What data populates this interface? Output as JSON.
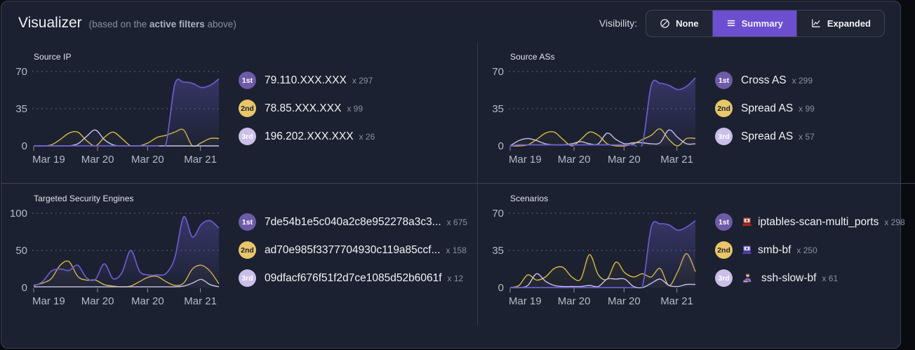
{
  "header": {
    "title": "Visualizer",
    "subtitle_prefix": "(based on the ",
    "subtitle_bold": "active filters",
    "subtitle_suffix": " above)",
    "visibility": {
      "label": "Visibility:",
      "options": [
        {
          "label": "None",
          "icon": "none-icon",
          "active": false
        },
        {
          "label": "Summary",
          "icon": "summary-icon",
          "active": true
        },
        {
          "label": "Expanded",
          "icon": "expanded-icon",
          "active": false
        }
      ]
    }
  },
  "colors": {
    "accent": "#6c4ed0",
    "series_purple": "#6a5ccf",
    "series_yellow": "#d9b845",
    "series_lavender": "#c9c2ec",
    "badge1": "#6d5ba8",
    "badge2": "#e8c669",
    "badge3": "#c9bfe8",
    "axis_text": "#b6bac6",
    "grid_dots": "#565b6b"
  },
  "panels": [
    {
      "title": "Source IP",
      "chart_data": {
        "type": "area",
        "x_labels": [
          "Mar 19",
          "Mar 20",
          "Mar 20",
          "Mar 21"
        ],
        "y_ticks": [
          0,
          35,
          70
        ],
        "ylim": [
          0,
          70
        ],
        "grid": "dotted",
        "legend": "none",
        "series": [
          {
            "name": "2nd",
            "color": "#d9b845",
            "values": [
              0,
              0,
              1,
              6,
              12,
              13,
              5,
              0,
              8,
              13,
              7,
              0,
              0,
              3,
              8,
              10,
              13,
              15,
              0,
              3,
              7,
              7
            ]
          },
          {
            "name": "3rd",
            "color": "#c9c2ec",
            "values": [
              0,
              0,
              0,
              0,
              0,
              2,
              9,
              15,
              6,
              1,
              0,
              0,
              0,
              0,
              0,
              0,
              0,
              0,
              0,
              0,
              0,
              0
            ]
          },
          {
            "name": "1st",
            "color": "#6a5ccf",
            "values": [
              0,
              0,
              0,
              0,
              0,
              0,
              0,
              0,
              0,
              0,
              0,
              0,
              0,
              0,
              0,
              2,
              58,
              60,
              59,
              55,
              57,
              63
            ]
          }
        ]
      },
      "ranking": [
        {
          "rank": "1st",
          "name": "79.110.XXX.XXX",
          "count": "x 297"
        },
        {
          "rank": "2nd",
          "name": "78.85.XXX.XXX",
          "count": "x 99"
        },
        {
          "rank": "3rd",
          "name": "196.202.XXX.XXX",
          "count": "x 26"
        }
      ]
    },
    {
      "title": "Source ASs",
      "chart_data": {
        "type": "area",
        "x_labels": [
          "Mar 19",
          "Mar 20",
          "Mar 20",
          "Mar 21"
        ],
        "y_ticks": [
          0,
          35,
          70
        ],
        "ylim": [
          0,
          70
        ],
        "grid": "dotted",
        "legend": "none",
        "series": [
          {
            "name": "2nd",
            "color": "#d9b845",
            "values": [
              0,
              0,
              1,
              6,
              12,
              13,
              6,
              0,
              6,
              13,
              10,
              2,
              0,
              0,
              2,
              6,
              10,
              16,
              6,
              0,
              7,
              7
            ]
          },
          {
            "name": "3rd",
            "color": "#c9c2ec",
            "values": [
              0,
              5,
              7,
              5,
              2,
              1,
              1,
              2,
              4,
              2,
              2,
              12,
              6,
              2,
              3,
              3,
              2,
              3,
              15,
              8,
              2,
              2
            ]
          },
          {
            "name": "1st",
            "color": "#6a5ccf",
            "values": [
              0,
              1,
              1,
              1,
              1,
              1,
              1,
              1,
              1,
              1,
              1,
              1,
              1,
              1,
              1,
              2,
              57,
              59,
              57,
              53,
              56,
              64
            ]
          }
        ]
      },
      "ranking": [
        {
          "rank": "1st",
          "name": "Cross AS",
          "count": "x 299"
        },
        {
          "rank": "2nd",
          "name": "Spread AS",
          "count": "x 99"
        },
        {
          "rank": "3rd",
          "name": "Spread AS",
          "count": "x 57"
        }
      ]
    },
    {
      "title": "Targeted Security Engines",
      "chart_data": {
        "type": "area",
        "x_labels": [
          "Mar 19",
          "Mar 20",
          "Mar 20",
          "Mar 21"
        ],
        "y_ticks": [
          0,
          50,
          100
        ],
        "ylim": [
          0,
          100
        ],
        "grid": "dotted",
        "legend": "none",
        "series": [
          {
            "name": "2nd",
            "color": "#d9b845",
            "values": [
              3,
              6,
              12,
              30,
              35,
              15,
              10,
              10,
              4,
              2,
              1,
              2,
              8,
              14,
              15,
              8,
              3,
              6,
              25,
              30,
              22,
              5
            ]
          },
          {
            "name": "3rd",
            "color": "#c9c2ec",
            "values": [
              1,
              1,
              1,
              1,
              1,
              1,
              1,
              1,
              1,
              1,
              1,
              1,
              1,
              1,
              1,
              1,
              1,
              2,
              6,
              11,
              4,
              1
            ]
          },
          {
            "name": "1st",
            "color": "#6a5ccf",
            "values": [
              2,
              8,
              22,
              25,
              23,
              30,
              13,
              11,
              32,
              12,
              20,
              50,
              22,
              17,
              17,
              19,
              40,
              95,
              68,
              85,
              90,
              80
            ]
          }
        ]
      },
      "ranking": [
        {
          "rank": "1st",
          "name": "7de54b1e5c040a2c8e952278a3c3...",
          "count": "x 675"
        },
        {
          "rank": "2nd",
          "name": "ad70e985f3377704930c119a85ccf...",
          "count": "x 158"
        },
        {
          "rank": "3rd",
          "name": "09dfacf676f51f2d7ce1085d52b6061f",
          "count": "x 12"
        }
      ]
    },
    {
      "title": "Scenarios",
      "chart_data": {
        "type": "area",
        "x_labels": [
          "Mar 19",
          "Mar 20",
          "Mar 20",
          "Mar 21"
        ],
        "y_ticks": [
          0,
          35,
          70
        ],
        "ylim": [
          0,
          70
        ],
        "grid": "dotted",
        "legend": "none",
        "series": [
          {
            "name": "2nd",
            "color": "#d9b845",
            "values": [
              0,
              2,
              12,
              7,
              10,
              18,
              19,
              10,
              8,
              31,
              12,
              8,
              24,
              14,
              10,
              13,
              10,
              18,
              2,
              15,
              32,
              15
            ]
          },
          {
            "name": "3rd",
            "color": "#c9c2ec",
            "values": [
              0,
              0,
              2,
              13,
              6,
              2,
              1,
              1,
              1,
              2,
              1,
              8,
              8,
              8,
              1,
              0,
              4,
              8,
              2,
              1,
              3,
              3
            ]
          },
          {
            "name": "1st",
            "color": "#6a5ccf",
            "values": [
              0,
              0,
              0,
              0,
              0,
              0,
              0,
              0,
              0,
              0,
              0,
              0,
              0,
              0,
              0,
              1,
              57,
              60,
              59,
              54,
              57,
              63
            ]
          }
        ]
      },
      "ranking": [
        {
          "rank": "1st",
          "name": "iptables-scan-multi_ports",
          "count": "x 298",
          "icon": "red-laptop"
        },
        {
          "rank": "2nd",
          "name": "smb-bf",
          "count": "x 250",
          "icon": "purple-laptop"
        },
        {
          "rank": "3rd",
          "name": "ssh-slow-bf",
          "count": "x 61",
          "icon": "hacker"
        }
      ]
    }
  ]
}
